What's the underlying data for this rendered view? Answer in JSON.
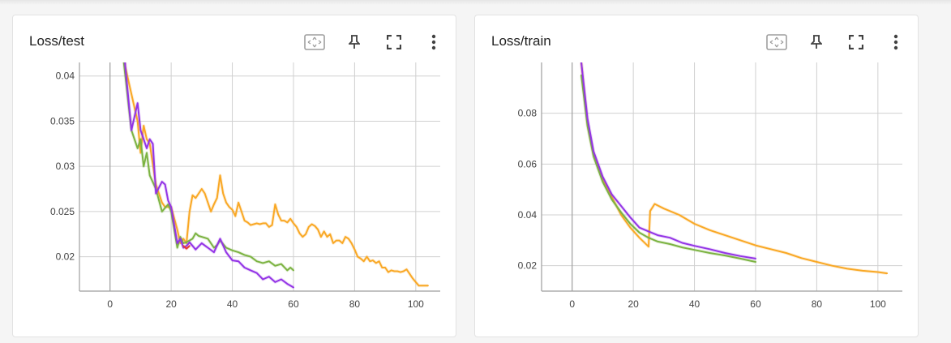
{
  "colors": {
    "orange": "#f9a825",
    "green": "#7cb342",
    "purple": "#9334e6",
    "red": "#e53935"
  },
  "icons": [
    "fit-domain-icon",
    "pin-icon",
    "fullscreen-icon",
    "more-vert-icon"
  ],
  "cards": [
    {
      "title": "Loss/test"
    },
    {
      "title": "Loss/train"
    }
  ],
  "chart_data": [
    {
      "type": "line",
      "title": "Loss/test",
      "xlim": [
        -10,
        108
      ],
      "ylim": [
        0.0162,
        0.0415
      ],
      "xticks": [
        0,
        20,
        40,
        60,
        80,
        100
      ],
      "yticks": [
        0.02,
        0.025,
        0.03,
        0.035,
        0.04
      ],
      "ytick_labels": [
        "0.02",
        "0.025",
        "0.03",
        "0.035",
        "0.04"
      ],
      "xtick_labels": [
        "0",
        "20",
        "40",
        "60",
        "80",
        "100"
      ],
      "grid": true,
      "series": [
        {
          "color": "#f9a825",
          "x": [
            3,
            5,
            7,
            9,
            10,
            11,
            12,
            13,
            15,
            17,
            18,
            20,
            22,
            23,
            24,
            25,
            26,
            27,
            28,
            30,
            31,
            32,
            33,
            34,
            35,
            36,
            37,
            38,
            39,
            40,
            41,
            42,
            43,
            44,
            45,
            46,
            47,
            48,
            49,
            50,
            51,
            52,
            53,
            54,
            55,
            56,
            57,
            58,
            59,
            60,
            61,
            62,
            63,
            64,
            65,
            66,
            67,
            68,
            69,
            70,
            71,
            72,
            73,
            74,
            75,
            76,
            77,
            78,
            79,
            80,
            81,
            82,
            83,
            84,
            85,
            86,
            87,
            88,
            89,
            90,
            91,
            92,
            93,
            94,
            95,
            96,
            97,
            98,
            99,
            100,
            101,
            102,
            103,
            104
          ],
          "y": [
            0.049,
            0.041,
            0.038,
            0.035,
            0.0315,
            0.0345,
            0.033,
            0.0325,
            0.028,
            0.026,
            0.0255,
            0.0255,
            0.023,
            0.0215,
            0.022,
            0.0215,
            0.025,
            0.0268,
            0.0265,
            0.0275,
            0.027,
            0.026,
            0.025,
            0.0258,
            0.0265,
            0.029,
            0.027,
            0.026,
            0.0255,
            0.0252,
            0.0245,
            0.026,
            0.025,
            0.024,
            0.0238,
            0.0235,
            0.0236,
            0.0237,
            0.0236,
            0.0237,
            0.0237,
            0.0233,
            0.0235,
            0.0258,
            0.0247,
            0.024,
            0.024,
            0.0238,
            0.0242,
            0.0237,
            0.0233,
            0.0226,
            0.0222,
            0.0225,
            0.0233,
            0.0236,
            0.0234,
            0.023,
            0.0222,
            0.0228,
            0.0222,
            0.0225,
            0.0215,
            0.0218,
            0.0218,
            0.0215,
            0.0222,
            0.022,
            0.0215,
            0.0208,
            0.02,
            0.0198,
            0.0195,
            0.02,
            0.0195,
            0.0196,
            0.0193,
            0.0195,
            0.0188,
            0.0188,
            0.0183,
            0.0185,
            0.0184,
            0.0184,
            0.0183,
            0.0184,
            0.0186,
            0.0181,
            0.0176,
            0.0172,
            0.0168,
            0.0168,
            0.0168,
            0.0168
          ]
        },
        {
          "color": "#7cb342",
          "x": [
            3,
            5,
            7,
            9,
            10,
            11,
            12,
            13,
            15,
            17,
            19,
            20,
            21,
            22,
            23,
            24,
            25,
            26,
            27,
            28,
            29,
            30,
            32,
            34,
            35,
            36,
            38,
            40,
            42,
            44,
            46,
            48,
            50,
            52,
            54,
            56,
            58,
            59,
            60
          ],
          "y": [
            0.046,
            0.04,
            0.034,
            0.032,
            0.033,
            0.03,
            0.0315,
            0.029,
            0.0275,
            0.025,
            0.0258,
            0.025,
            0.023,
            0.021,
            0.0222,
            0.0215,
            0.0216,
            0.0218,
            0.022,
            0.0226,
            0.0223,
            0.0222,
            0.022,
            0.021,
            0.0213,
            0.0218,
            0.021,
            0.0207,
            0.0205,
            0.0202,
            0.02,
            0.0195,
            0.0193,
            0.0195,
            0.019,
            0.0192,
            0.0185,
            0.0188,
            0.0185
          ]
        },
        {
          "color": "#9334e6",
          "x": [
            3,
            5,
            7,
            9,
            10,
            11,
            12,
            13,
            14,
            15,
            17,
            18,
            19,
            20,
            21,
            22,
            23,
            24,
            25,
            26,
            28,
            30,
            32,
            34,
            36,
            38,
            40,
            42,
            44,
            46,
            48,
            50,
            52,
            54,
            56,
            58,
            59,
            60
          ],
          "y": [
            0.05,
            0.041,
            0.034,
            0.037,
            0.034,
            0.033,
            0.032,
            0.033,
            0.0325,
            0.027,
            0.0283,
            0.028,
            0.0262,
            0.0255,
            0.0235,
            0.0215,
            0.022,
            0.021,
            0.0212,
            0.0216,
            0.0208,
            0.0215,
            0.021,
            0.0205,
            0.022,
            0.0205,
            0.0196,
            0.0195,
            0.0188,
            0.0185,
            0.0182,
            0.0175,
            0.0178,
            0.0172,
            0.0175,
            0.017,
            0.0168,
            0.0166
          ]
        },
        {
          "color": "#e53935",
          "x": [
            24,
            25,
            26
          ],
          "y": [
            0.0212,
            0.0209,
            0.0212
          ]
        }
      ]
    },
    {
      "type": "line",
      "title": "Loss/train",
      "xlim": [
        -10,
        108
      ],
      "ylim": [
        0.01,
        0.1
      ],
      "xticks": [
        0,
        20,
        40,
        60,
        80,
        100
      ],
      "yticks": [
        0.02,
        0.04,
        0.06,
        0.08
      ],
      "ytick_labels": [
        "0.02",
        "0.04",
        "0.06",
        "0.08"
      ],
      "xtick_labels": [
        "0",
        "20",
        "40",
        "60",
        "80",
        "100"
      ],
      "grid": true,
      "series": [
        {
          "color": "#f9a825",
          "x": [
            3,
            5,
            7,
            10,
            13,
            16,
            19,
            22,
            25,
            25.5,
            27,
            30,
            35,
            40,
            45,
            50,
            55,
            60,
            65,
            70,
            75,
            80,
            85,
            90,
            95,
            100,
            103
          ],
          "y": [
            0.1,
            0.076,
            0.064,
            0.054,
            0.047,
            0.04,
            0.035,
            0.031,
            0.0275,
            0.0415,
            0.0443,
            0.0425,
            0.04,
            0.0365,
            0.034,
            0.032,
            0.03,
            0.028,
            0.0265,
            0.025,
            0.023,
            0.0215,
            0.02,
            0.0188,
            0.018,
            0.0175,
            0.017
          ]
        },
        {
          "color": "#7cb342",
          "x": [
            3,
            5,
            7,
            10,
            13,
            16,
            19,
            22,
            25,
            28,
            32,
            36,
            40,
            45,
            50,
            55,
            60
          ],
          "y": [
            0.095,
            0.075,
            0.063,
            0.053,
            0.046,
            0.041,
            0.0365,
            0.033,
            0.031,
            0.0295,
            0.0285,
            0.0272,
            0.0262,
            0.025,
            0.024,
            0.0228,
            0.0215
          ]
        },
        {
          "color": "#9334e6",
          "x": [
            3,
            5,
            7,
            10,
            13,
            16,
            19,
            22,
            25,
            28,
            32,
            36,
            40,
            45,
            50,
            55,
            60
          ],
          "y": [
            0.1,
            0.078,
            0.065,
            0.055,
            0.048,
            0.0435,
            0.039,
            0.035,
            0.0335,
            0.032,
            0.031,
            0.029,
            0.0278,
            0.0265,
            0.025,
            0.0238,
            0.0228
          ]
        }
      ]
    }
  ]
}
